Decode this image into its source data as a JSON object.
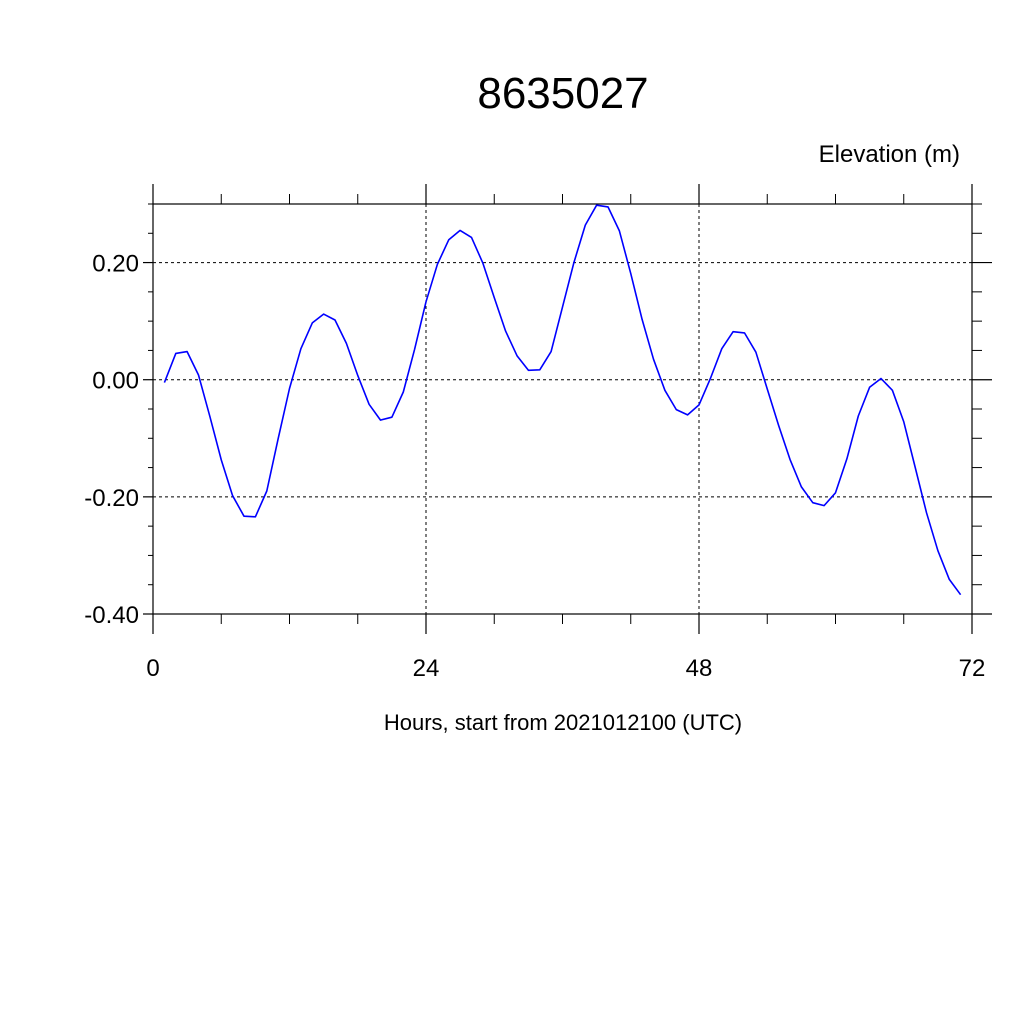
{
  "chart_data": {
    "type": "line",
    "title": "8635027",
    "ylabel": "Elevation (m)",
    "xlabel": "Hours, start from 2021012100 (UTC)",
    "xlim": [
      0,
      72
    ],
    "ylim": [
      -0.4,
      0.3
    ],
    "x_ticks": [
      0,
      24,
      48,
      72
    ],
    "x_tick_labels": [
      "0",
      "24",
      "48",
      "72"
    ],
    "y_ticks": [
      -0.4,
      -0.2,
      0.0,
      0.2
    ],
    "y_tick_labels": [
      "-0.40",
      "-0.20",
      "0.00",
      "0.20"
    ],
    "grid": true,
    "line_color": "#0000ff",
    "series": [
      {
        "x": [
          1,
          2,
          3,
          4,
          5,
          6,
          7,
          8,
          9,
          10,
          11,
          12,
          13,
          14,
          15,
          16,
          17,
          18,
          19,
          20,
          21,
          22,
          23,
          24,
          25,
          26,
          27,
          28,
          29,
          30,
          31,
          32,
          33,
          34,
          35,
          36,
          37,
          38,
          39,
          40,
          41,
          42,
          43,
          44,
          45,
          46,
          47,
          48,
          49,
          50,
          51,
          52,
          53,
          54,
          55,
          56,
          57,
          58,
          59,
          60,
          61,
          62,
          63,
          64,
          65,
          66,
          67,
          68,
          69,
          70,
          71
        ],
        "values": [
          -0.005,
          0.045,
          0.048,
          0.008,
          -0.063,
          -0.137,
          -0.198,
          -0.233,
          -0.234,
          -0.19,
          -0.101,
          -0.015,
          0.053,
          0.097,
          0.112,
          0.102,
          0.062,
          0.007,
          -0.042,
          -0.069,
          -0.064,
          -0.021,
          0.052,
          0.133,
          0.197,
          0.239,
          0.255,
          0.243,
          0.199,
          0.14,
          0.083,
          0.041,
          0.016,
          0.017,
          0.048,
          0.124,
          0.2,
          0.264,
          0.298,
          0.295,
          0.254,
          0.181,
          0.103,
          0.035,
          -0.018,
          -0.051,
          -0.06,
          -0.043,
          0.002,
          0.053,
          0.082,
          0.08,
          0.047,
          -0.016,
          -0.078,
          -0.136,
          -0.183,
          -0.21,
          -0.215,
          -0.193,
          -0.135,
          -0.062,
          -0.013,
          0.002,
          -0.018,
          -0.072,
          -0.149,
          -0.227,
          -0.292,
          -0.341,
          -0.367
        ]
      }
    ]
  }
}
